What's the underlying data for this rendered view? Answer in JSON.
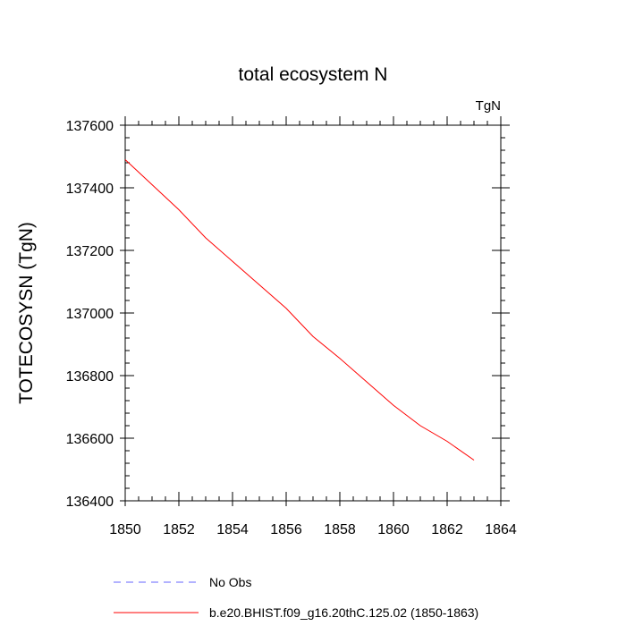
{
  "chart_data": {
    "type": "line",
    "title": "total ecosystem N",
    "units": "TgN",
    "ylabel": "TOTECOSYSN  (TgN)",
    "xlabel": "",
    "xlim": [
      1850,
      1864
    ],
    "ylim": [
      136400,
      137600
    ],
    "xticks": [
      1850,
      1852,
      1854,
      1856,
      1858,
      1860,
      1862,
      1864
    ],
    "yticks": [
      136400,
      136600,
      136800,
      137000,
      137200,
      137400,
      137600
    ],
    "grid": false,
    "legend_position": "bottom",
    "series": [
      {
        "name": "b.e20.BHIST.f09_g16.20thC.125.02 (1850-1863)",
        "color": "#ff0000",
        "style": "solid",
        "x": [
          1850,
          1851,
          1852,
          1853,
          1854,
          1855,
          1856,
          1857,
          1858,
          1859,
          1860,
          1861,
          1862,
          1863
        ],
        "values": [
          137490,
          137410,
          137330,
          137240,
          137165,
          137090,
          137015,
          136925,
          136855,
          136780,
          136705,
          136640,
          136590,
          136530
        ]
      }
    ],
    "legend": [
      {
        "label": "No Obs",
        "color": "#6666ff",
        "style": "dashed"
      },
      {
        "label": "b.e20.BHIST.f09_g16.20thC.125.02 (1850-1863)",
        "color": "#ff0000",
        "style": "solid"
      }
    ]
  }
}
